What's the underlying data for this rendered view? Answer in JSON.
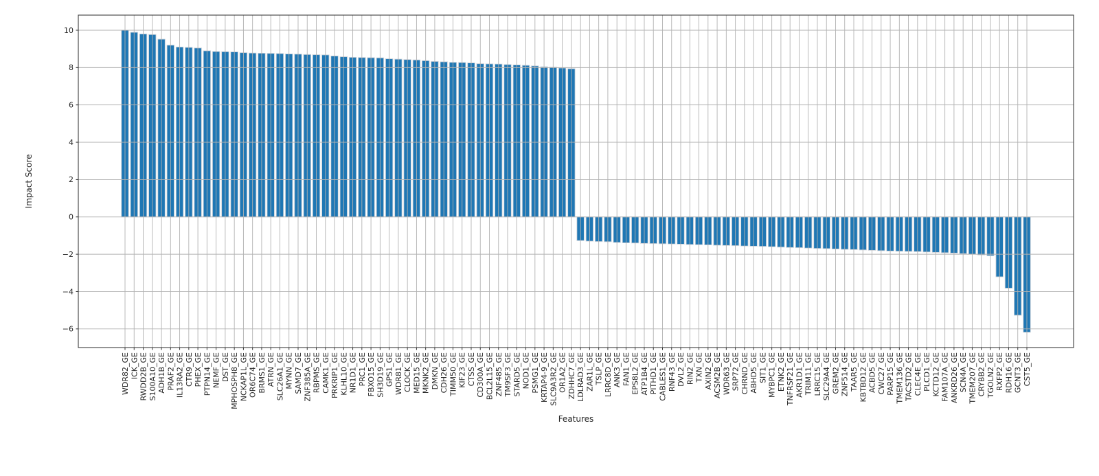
{
  "figure": {
    "background": "#ffffff",
    "bar_color": "#1f77b4",
    "bar_edge_color": "#ccd2d9",
    "grid_color": "#b2b2b2",
    "spine_color": "#3c3c3c",
    "tick_color": "#333333",
    "text_color": "#262626"
  },
  "chart_data": {
    "type": "bar",
    "title": "",
    "xlabel": "Features",
    "ylabel": "Impact Score",
    "legend": "none",
    "grid": "both",
    "ylim": [
      -7.0,
      10.81
    ],
    "yticks": [
      10,
      8,
      6,
      4,
      2,
      0,
      -2,
      -4,
      -6
    ],
    "categories": [
      "WDR82_GE",
      "ICK_GE",
      "RWDD2B_GE",
      "S100A10_GE",
      "ADH1B_GE",
      "PRAF2_GE",
      "IL13RA2_GE",
      "CTR9_GE",
      "PHEX_GE",
      "PTPN14_GE",
      "NEMF_GE",
      "DST_GE",
      "MPHOSPH8_GE",
      "NCKAP1L_GE",
      "OR6C74_GE",
      "BRMS1_GE",
      "ATRN_GE",
      "SLC26A1_GE",
      "MYNN_GE",
      "SAMD7_GE",
      "ZNF385A_GE",
      "RBPMS_GE",
      "CAMK1_GE",
      "PRKRIP1_GE",
      "KLHL10_GE",
      "NR1D1_GE",
      "PRC1_GE",
      "FBXO15_GE",
      "SH3D19_GE",
      "GPS1_GE",
      "WDR81_GE",
      "CLOCK_GE",
      "MED15_GE",
      "MKNK2_GE",
      "DMKN_GE",
      "CDH26_GE",
      "TIMM50_GE",
      "KIF23_GE",
      "CTSS_GE",
      "CD300A_GE",
      "BCL2L15_GE",
      "ZNF485_GE",
      "TM9SF3_GE",
      "STARD5_GE",
      "NOD1_GE",
      "PSMG1_GE",
      "KRTAP4-9_GE",
      "SLC9A3R2_GE",
      "OR1A2_GE",
      "ZDHHC7_GE",
      "LDLRAD3_GE",
      "ZAR1L_GE",
      "TSLP_GE",
      "LRRC8D_GE",
      "ANK3_GE",
      "FAN1_GE",
      "EPS8L2_GE",
      "ATP1B4_GE",
      "PITHD1_GE",
      "CABLES1_GE",
      "RNF43_GE",
      "DVL2_GE",
      "RIN2_GE",
      "TXN_GE",
      "AXIN2_GE",
      "ACSM2B_GE",
      "WDR63_GE",
      "SRP72_GE",
      "CHRND_GE",
      "ABHD5_GE",
      "SIT1_GE",
      "MYBPC1_GE",
      "ETNK2_GE",
      "TNFRSF21_GE",
      "AKR1D1_GE",
      "TRIM11_GE",
      "LRRC15_GE",
      "SLC29A4_GE",
      "GREM2_GE",
      "ZNF514_GE",
      "TAAR5_GE",
      "KBTBD12_GE",
      "ACBD5_GE",
      "CWC27_GE",
      "PARP15_GE",
      "TMEM136_GE",
      "TACSTD2_GE",
      "CLEC4E_GE",
      "PLCD1_GE",
      "KCTD12_GE",
      "FAM107A_GE",
      "ANKRD26_GE",
      "SCN4A_GE",
      "TMEM207_GE",
      "CRYBB2_GE",
      "TGOLN2_GE",
      "RXFP2_GE",
      "RDH16_GE",
      "GCNT3_GE",
      "CST5_GE"
    ],
    "values": [
      10.0,
      9.89,
      9.8,
      9.77,
      9.52,
      9.2,
      9.1,
      9.08,
      9.05,
      8.9,
      8.86,
      8.85,
      8.84,
      8.8,
      8.78,
      8.77,
      8.76,
      8.75,
      8.73,
      8.72,
      8.7,
      8.69,
      8.68,
      8.62,
      8.58,
      8.55,
      8.54,
      8.53,
      8.52,
      8.47,
      8.45,
      8.43,
      8.41,
      8.37,
      8.33,
      8.31,
      8.28,
      8.27,
      8.25,
      8.21,
      8.2,
      8.19,
      8.16,
      8.14,
      8.12,
      8.09,
      8.04,
      8.02,
      7.98,
      7.94,
      -1.27,
      -1.3,
      -1.32,
      -1.33,
      -1.37,
      -1.39,
      -1.4,
      -1.42,
      -1.43,
      -1.44,
      -1.45,
      -1.46,
      -1.48,
      -1.49,
      -1.5,
      -1.52,
      -1.53,
      -1.54,
      -1.56,
      -1.57,
      -1.58,
      -1.6,
      -1.62,
      -1.64,
      -1.65,
      -1.67,
      -1.69,
      -1.7,
      -1.72,
      -1.74,
      -1.75,
      -1.77,
      -1.79,
      -1.81,
      -1.83,
      -1.84,
      -1.85,
      -1.86,
      -1.88,
      -1.9,
      -1.92,
      -1.94,
      -1.97,
      -2.0,
      -2.04,
      -2.08,
      -3.21,
      -3.82,
      -5.27,
      -6.18
    ]
  }
}
